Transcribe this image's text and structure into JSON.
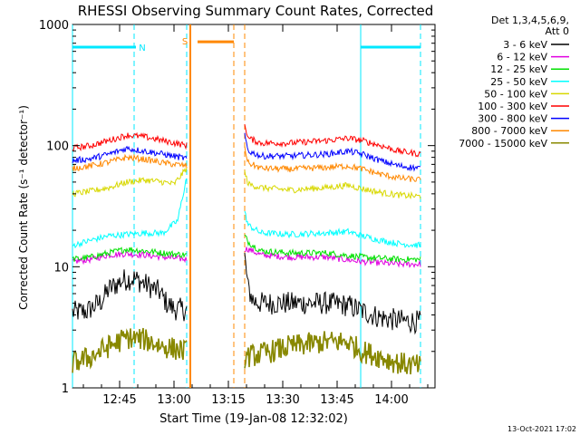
{
  "title": "RHESSI Observing Summary Count Rates, Corrected",
  "stamp": "13-Oct-2021 17:02",
  "detector_header": {
    "line1": "Det 1,3,4,5,6,9,",
    "line2": "Att 0"
  },
  "colors": {
    "black": "#000000",
    "magenta": "#e000e0",
    "green": "#00e000",
    "cyan": "#00ffff",
    "yellow": "#d8d800",
    "red": "#ff0000",
    "blue": "#0000ff",
    "orange": "#ff8800",
    "olive": "#888800",
    "flag_cyan": "#00e8ff",
    "flag_orange": "#ff8800"
  },
  "chart_data": {
    "type": "line",
    "title": "RHESSI Observing Summary Count Rates, Corrected",
    "xlabel": "Start Time (19-Jan-08 12:32:02)",
    "ylabel": "Corrected Count Rate (s⁻¹ detector⁻¹)",
    "y_scale": "log",
    "ylim": [
      1,
      1000
    ],
    "xlim_minutes_since_start": [
      0,
      100
    ],
    "x_ticks": [
      {
        "label": "12:45",
        "minutes": 13
      },
      {
        "label": "13:00",
        "minutes": 28
      },
      {
        "label": "13:15",
        "minutes": 43
      },
      {
        "label": "13:30",
        "minutes": 58
      },
      {
        "label": "13:45",
        "minutes": 73
      },
      {
        "label": "14:00",
        "minutes": 88
      }
    ],
    "y_ticks": [
      {
        "label": "1",
        "value": 1
      },
      {
        "label": "10",
        "value": 10
      },
      {
        "label": "100",
        "value": 100
      },
      {
        "label": "1000",
        "value": 1000
      }
    ],
    "gap_minutes": [
      32,
      47
    ],
    "legend_placement": "right",
    "flags": [
      {
        "label": "N",
        "color": "flag_cyan",
        "y_value": 650,
        "segments": [
          [
            0,
            17.5
          ],
          [
            79.5,
            96
          ]
        ]
      },
      {
        "label": "S",
        "color": "flag_orange",
        "y_value": 720,
        "segments": [
          [
            34.5,
            44.5
          ]
        ]
      }
    ],
    "vlines": [
      {
        "minutes": 0,
        "color": "flag_cyan",
        "style": "solid"
      },
      {
        "minutes": 17,
        "color": "flag_cyan",
        "style": "dash"
      },
      {
        "minutes": 31.5,
        "color": "flag_cyan",
        "style": "dash"
      },
      {
        "minutes": 32.5,
        "color": "flag_orange",
        "style": "solid"
      },
      {
        "minutes": 44.5,
        "color": "flag_orange",
        "style": "dash"
      },
      {
        "minutes": 47.5,
        "color": "flag_orange",
        "style": "dash"
      },
      {
        "minutes": 79.5,
        "color": "flag_cyan",
        "style": "solid"
      },
      {
        "minutes": 96,
        "color": "flag_cyan",
        "style": "dash"
      }
    ],
    "series": [
      {
        "name": "3 - 6 keV",
        "color": "black",
        "segments": [
          {
            "x": [
              0,
              4,
              8,
              10,
              14,
              17,
              20,
              24,
              26,
              28,
              31.5
            ],
            "y": [
              4.2,
              4.3,
              5.2,
              6.5,
              7.8,
              8.0,
              7.2,
              6.2,
              5.0,
              4.5,
              4.4
            ]
          },
          {
            "x": [
              47.5,
              48.5,
              50,
              52,
              60,
              70,
              76,
              80,
              85,
              90,
              96
            ],
            "y": [
              12,
              6.5,
              5.2,
              5.0,
              5.0,
              5.0,
              4.8,
              4.3,
              3.8,
              3.6,
              3.5
            ]
          }
        ]
      },
      {
        "name": "6 - 12 keV",
        "color": "magenta",
        "segments": [
          {
            "x": [
              0,
              5,
              10,
              15,
              20,
              25,
              31.5
            ],
            "y": [
              11,
              11.5,
              12.5,
              12.8,
              12.5,
              12,
              11.5
            ]
          },
          {
            "x": [
              47.5,
              48.5,
              52,
              60,
              70,
              80,
              90,
              96
            ],
            "y": [
              14,
              14,
              12.5,
              12,
              12,
              11,
              10.5,
              10.5
            ]
          }
        ]
      },
      {
        "name": "12 - 25 keV",
        "color": "green",
        "segments": [
          {
            "x": [
              0,
              5,
              10,
              15,
              20,
              25,
              31.5
            ],
            "y": [
              11.5,
              12,
              13,
              14,
              13.5,
              13,
              12.5
            ]
          },
          {
            "x": [
              47.5,
              48.5,
              52,
              60,
              70,
              80,
              90,
              96
            ],
            "y": [
              18,
              16,
              13.5,
              13,
              13,
              12,
              11.5,
              11.5
            ]
          }
        ]
      },
      {
        "name": "25 - 50 keV",
        "color": "cyan",
        "segments": [
          {
            "x": [
              0,
              5,
              10,
              15,
              20,
              25,
              29,
              31.5
            ],
            "y": [
              15,
              16.5,
              18,
              18.5,
              19,
              19,
              24,
              55
            ]
          },
          {
            "x": [
              47.5,
              48.5,
              52,
              60,
              70,
              76,
              80,
              85,
              90,
              96
            ],
            "y": [
              28,
              22,
              19,
              18.5,
              19,
              19.5,
              18,
              16.5,
              15.5,
              15
            ]
          }
        ]
      },
      {
        "name": "50 - 100 keV",
        "color": "yellow",
        "segments": [
          {
            "x": [
              0,
              5,
              10,
              15,
              20,
              25,
              28,
              31.5
            ],
            "y": [
              40,
              42,
              45,
              50,
              52,
              50,
              48,
              65
            ]
          },
          {
            "x": [
              47.5,
              48.5,
              52,
              60,
              70,
              76,
              80,
              85,
              90,
              96
            ],
            "y": [
              60,
              48,
              45,
              43,
              45,
              47,
              44,
              41,
              39,
              38
            ]
          }
        ]
      },
      {
        "name": "100 - 300 keV",
        "color": "red",
        "segments": [
          {
            "x": [
              0,
              5,
              10,
              15,
              20,
              25,
              31.5
            ],
            "y": [
              95,
              100,
              110,
              122,
              118,
              110,
              100
            ]
          },
          {
            "x": [
              47.5,
              48.5,
              52,
              60,
              70,
              76,
              80,
              85,
              90,
              96
            ],
            "y": [
              150,
              115,
              105,
              105,
              110,
              115,
              110,
              100,
              90,
              85
            ]
          }
        ]
      },
      {
        "name": "300 - 800 keV",
        "color": "blue",
        "segments": [
          {
            "x": [
              0,
              5,
              10,
              15,
              20,
              25,
              31.5
            ],
            "y": [
              75,
              78,
              85,
              95,
              90,
              85,
              78
            ]
          },
          {
            "x": [
              47.5,
              48.5,
              52,
              60,
              70,
              76,
              80,
              85,
              90,
              96
            ],
            "y": [
              120,
              90,
              82,
              82,
              85,
              90,
              85,
              75,
              68,
              65
            ]
          }
        ]
      },
      {
        "name": "800 - 7000 keV",
        "color": "orange",
        "segments": [
          {
            "x": [
              0,
              5,
              10,
              15,
              20,
              25,
              31.5
            ],
            "y": [
              65,
              68,
              73,
              80,
              77,
              72,
              68
            ]
          },
          {
            "x": [
              47.5,
              48.5,
              52,
              60,
              70,
              76,
              80,
              85,
              90,
              96
            ],
            "y": [
              95,
              72,
              65,
              64,
              66,
              68,
              64,
              58,
              54,
              52
            ]
          }
        ]
      },
      {
        "name": "7000 - 15000 keV",
        "color": "olive",
        "segments": [
          {
            "x": [
              0,
              5,
              10,
              15,
              20,
              25,
              31.5
            ],
            "y": [
              1.6,
              1.8,
              2.2,
              2.6,
              2.5,
              2.2,
              2.0
            ]
          },
          {
            "x": [
              47.5,
              52,
              60,
              70,
              76,
              80,
              85,
              90,
              96
            ],
            "y": [
              1.8,
              1.9,
              2.2,
              2.4,
              2.4,
              2.0,
              1.8,
              1.6,
              1.5
            ]
          }
        ]
      }
    ]
  }
}
